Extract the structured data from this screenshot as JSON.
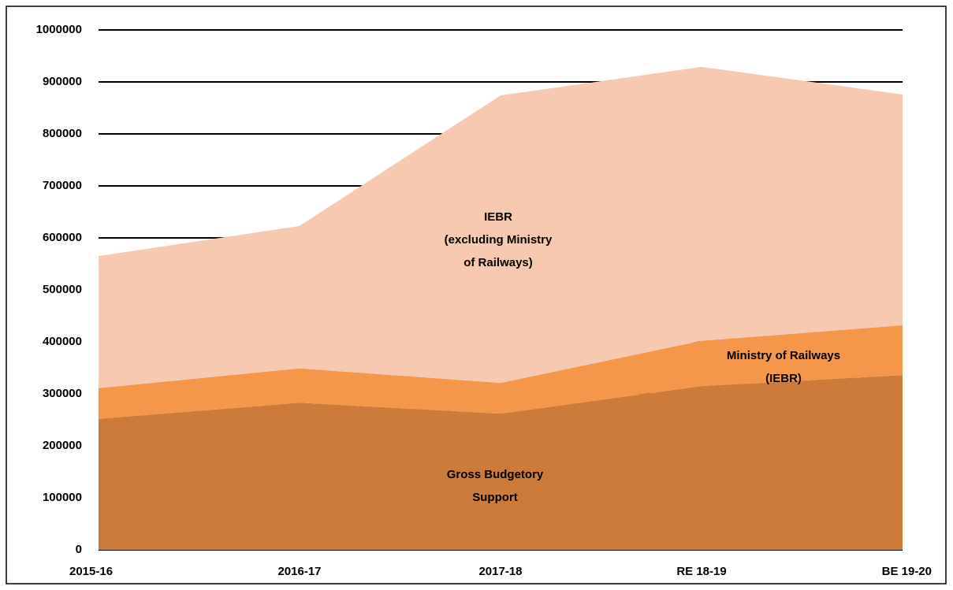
{
  "chart_data": {
    "type": "stacked_area",
    "categories": [
      "2015-16",
      "2016-17",
      "2017-18",
      "RE 18-19",
      "BE 19-20"
    ],
    "series": [
      {
        "name": [
          "Gross Budgetory",
          "Support"
        ],
        "color": "#cd7b3a",
        "values": [
          252000,
          283000,
          262000,
          315000,
          336000
        ]
      },
      {
        "name": [
          "Ministry of Railways",
          "(IEBR)"
        ],
        "color": "#f4974a",
        "values": [
          59000,
          66000,
          59000,
          87000,
          96000
        ]
      },
      {
        "name": [
          "IEBR",
          "(excluding Ministry",
          "of Railways)"
        ],
        "color": "#f8c9b1",
        "values": [
          254000,
          274000,
          553000,
          527000,
          444000
        ]
      }
    ],
    "ylim": [
      0,
      1000000
    ],
    "yticks": [
      0,
      100000,
      200000,
      300000,
      400000,
      500000,
      600000,
      700000,
      800000,
      900000,
      1000000
    ],
    "grid": true
  }
}
